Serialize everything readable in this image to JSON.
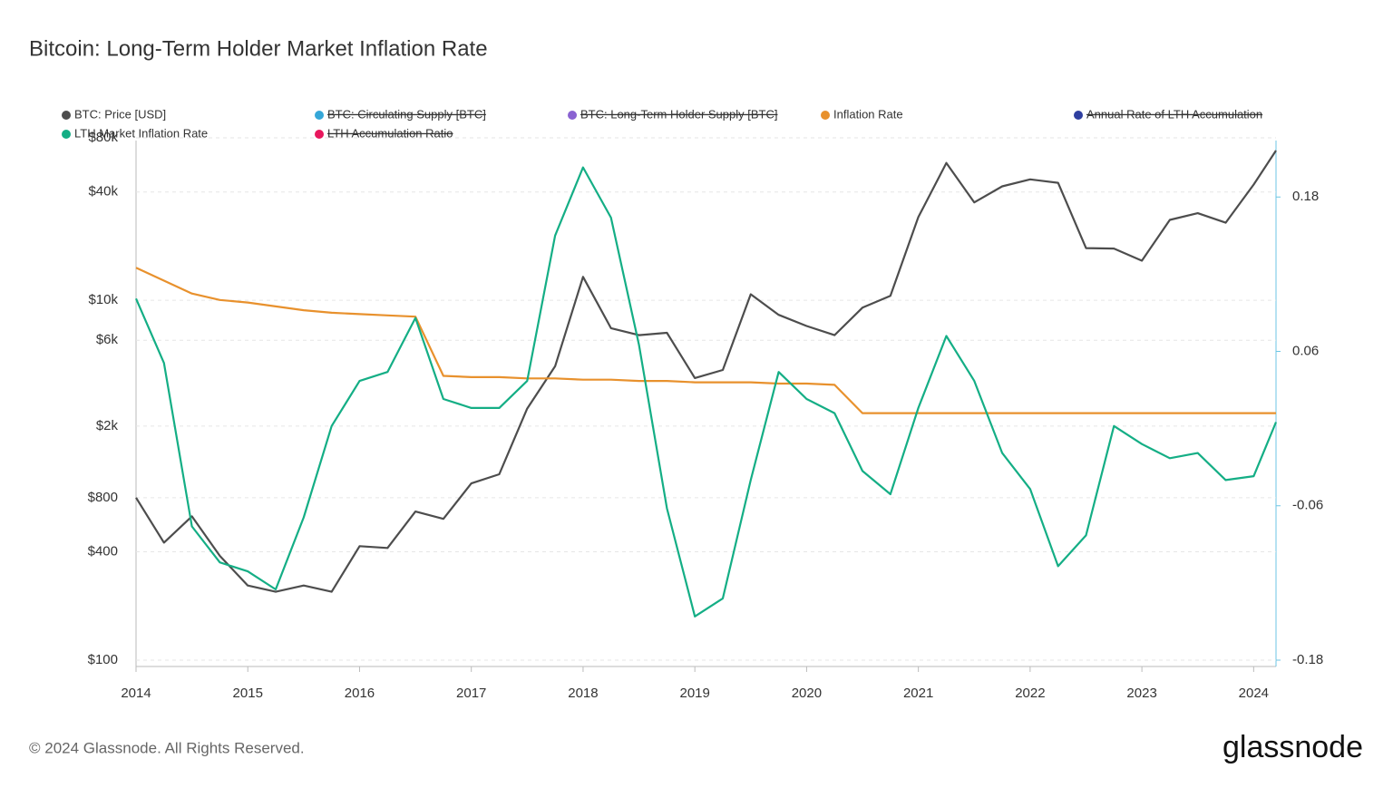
{
  "chart_data": {
    "type": "line",
    "title": "Bitcoin: Long-Term Holder Market Inflation Rate",
    "footer": "© 2024 Glassnode. All Rights Reserved.",
    "brand": "glassnode",
    "x": [
      2014,
      2014.25,
      2014.5,
      2014.75,
      2015,
      2015.25,
      2015.5,
      2015.75,
      2016,
      2016.25,
      2016.5,
      2016.75,
      2017,
      2017.25,
      2017.5,
      2017.75,
      2018,
      2018.25,
      2018.5,
      2018.75,
      2019,
      2019.25,
      2019.5,
      2019.75,
      2020,
      2020.25,
      2020.5,
      2020.75,
      2021,
      2021.25,
      2021.5,
      2021.75,
      2022,
      2022.25,
      2022.5,
      2022.75,
      2023,
      2023.25,
      2023.5,
      2023.75,
      2024,
      2024.2
    ],
    "xlim": [
      2014,
      2024.2
    ],
    "xticks": [
      2014,
      2015,
      2016,
      2017,
      2018,
      2019,
      2020,
      2021,
      2022,
      2023,
      2024
    ],
    "ylog": true,
    "ylim": [
      100,
      80000
    ],
    "yticks": [
      {
        "value": 100,
        "label": "$100"
      },
      {
        "value": 400,
        "label": "$400"
      },
      {
        "value": 800,
        "label": "$800"
      },
      {
        "value": 2000,
        "label": "$2k"
      },
      {
        "value": 6000,
        "label": "$6k"
      },
      {
        "value": 10000,
        "label": "$10k"
      },
      {
        "value": 40000,
        "label": "$40k"
      },
      {
        "value": 80000,
        "label": "$80k"
      }
    ],
    "y2lim": [
      -0.18,
      0.226
    ],
    "y2ticks": [
      -0.18,
      -0.06,
      0.06,
      0.18
    ],
    "grid": true,
    "series": [
      {
        "name": "BTC: Price [USD]",
        "color": "#4d4d4d",
        "values": [
          800,
          450,
          630,
          380,
          260,
          240,
          260,
          240,
          430,
          420,
          670,
          610,
          960,
          1080,
          2500,
          4300,
          13500,
          7000,
          6400,
          6600,
          3700,
          4100,
          10800,
          8300,
          7200,
          6400,
          9100,
          10600,
          29000,
          58000,
          35000,
          43000,
          47000,
          45000,
          19500,
          19400,
          16600,
          28000,
          30500,
          27000,
          44000,
          68000
        ]
      },
      {
        "name": "BTC: Circulating Supply [BTC]",
        "color": "#35a7d8",
        "hidden": true
      },
      {
        "name": "BTC: Long-Term Holder Supply [BTC]",
        "color": "#8a63d2",
        "hidden": true
      },
      {
        "name": "Inflation Rate",
        "color": "#e8912d",
        "axis": "y2",
        "values": [
          0.125,
          0.115,
          0.105,
          0.1,
          0.098,
          0.095,
          0.092,
          0.09,
          0.089,
          0.088,
          0.087,
          0.041,
          0.04,
          0.04,
          0.039,
          0.039,
          0.038,
          0.038,
          0.037,
          0.037,
          0.036,
          0.036,
          0.036,
          0.035,
          0.035,
          0.034,
          0.012,
          0.012,
          0.012,
          0.012,
          0.012,
          0.012,
          0.012,
          0.012,
          0.012,
          0.012,
          0.012,
          0.012,
          0.012,
          0.012,
          0.012,
          0.012
        ]
      },
      {
        "name": "Annual Rate of LTH Accumulation",
        "color": "#2f3fa0",
        "hidden": true
      },
      {
        "name": "LTH Market Inflation Rate",
        "color": "#14ae85",
        "axis": "y2",
        "values": [
          0.101,
          0.051,
          -0.076,
          -0.104,
          -0.111,
          -0.125,
          -0.069,
          0.002,
          0.037,
          0.044,
          0.086,
          0.023,
          0.016,
          0.016,
          0.037,
          0.15,
          0.203,
          0.164,
          0.065,
          -0.062,
          -0.146,
          -0.132,
          -0.04,
          0.044,
          0.023,
          0.012,
          -0.033,
          -0.051,
          0.016,
          0.072,
          0.037,
          -0.019,
          -0.047,
          -0.107,
          -0.083,
          0.002,
          -0.012,
          -0.023,
          -0.019,
          -0.04,
          -0.037,
          0.005
        ]
      },
      {
        "name": "LTH Accumulation Ratio",
        "color": "#e8175d",
        "hidden": true
      }
    ]
  }
}
